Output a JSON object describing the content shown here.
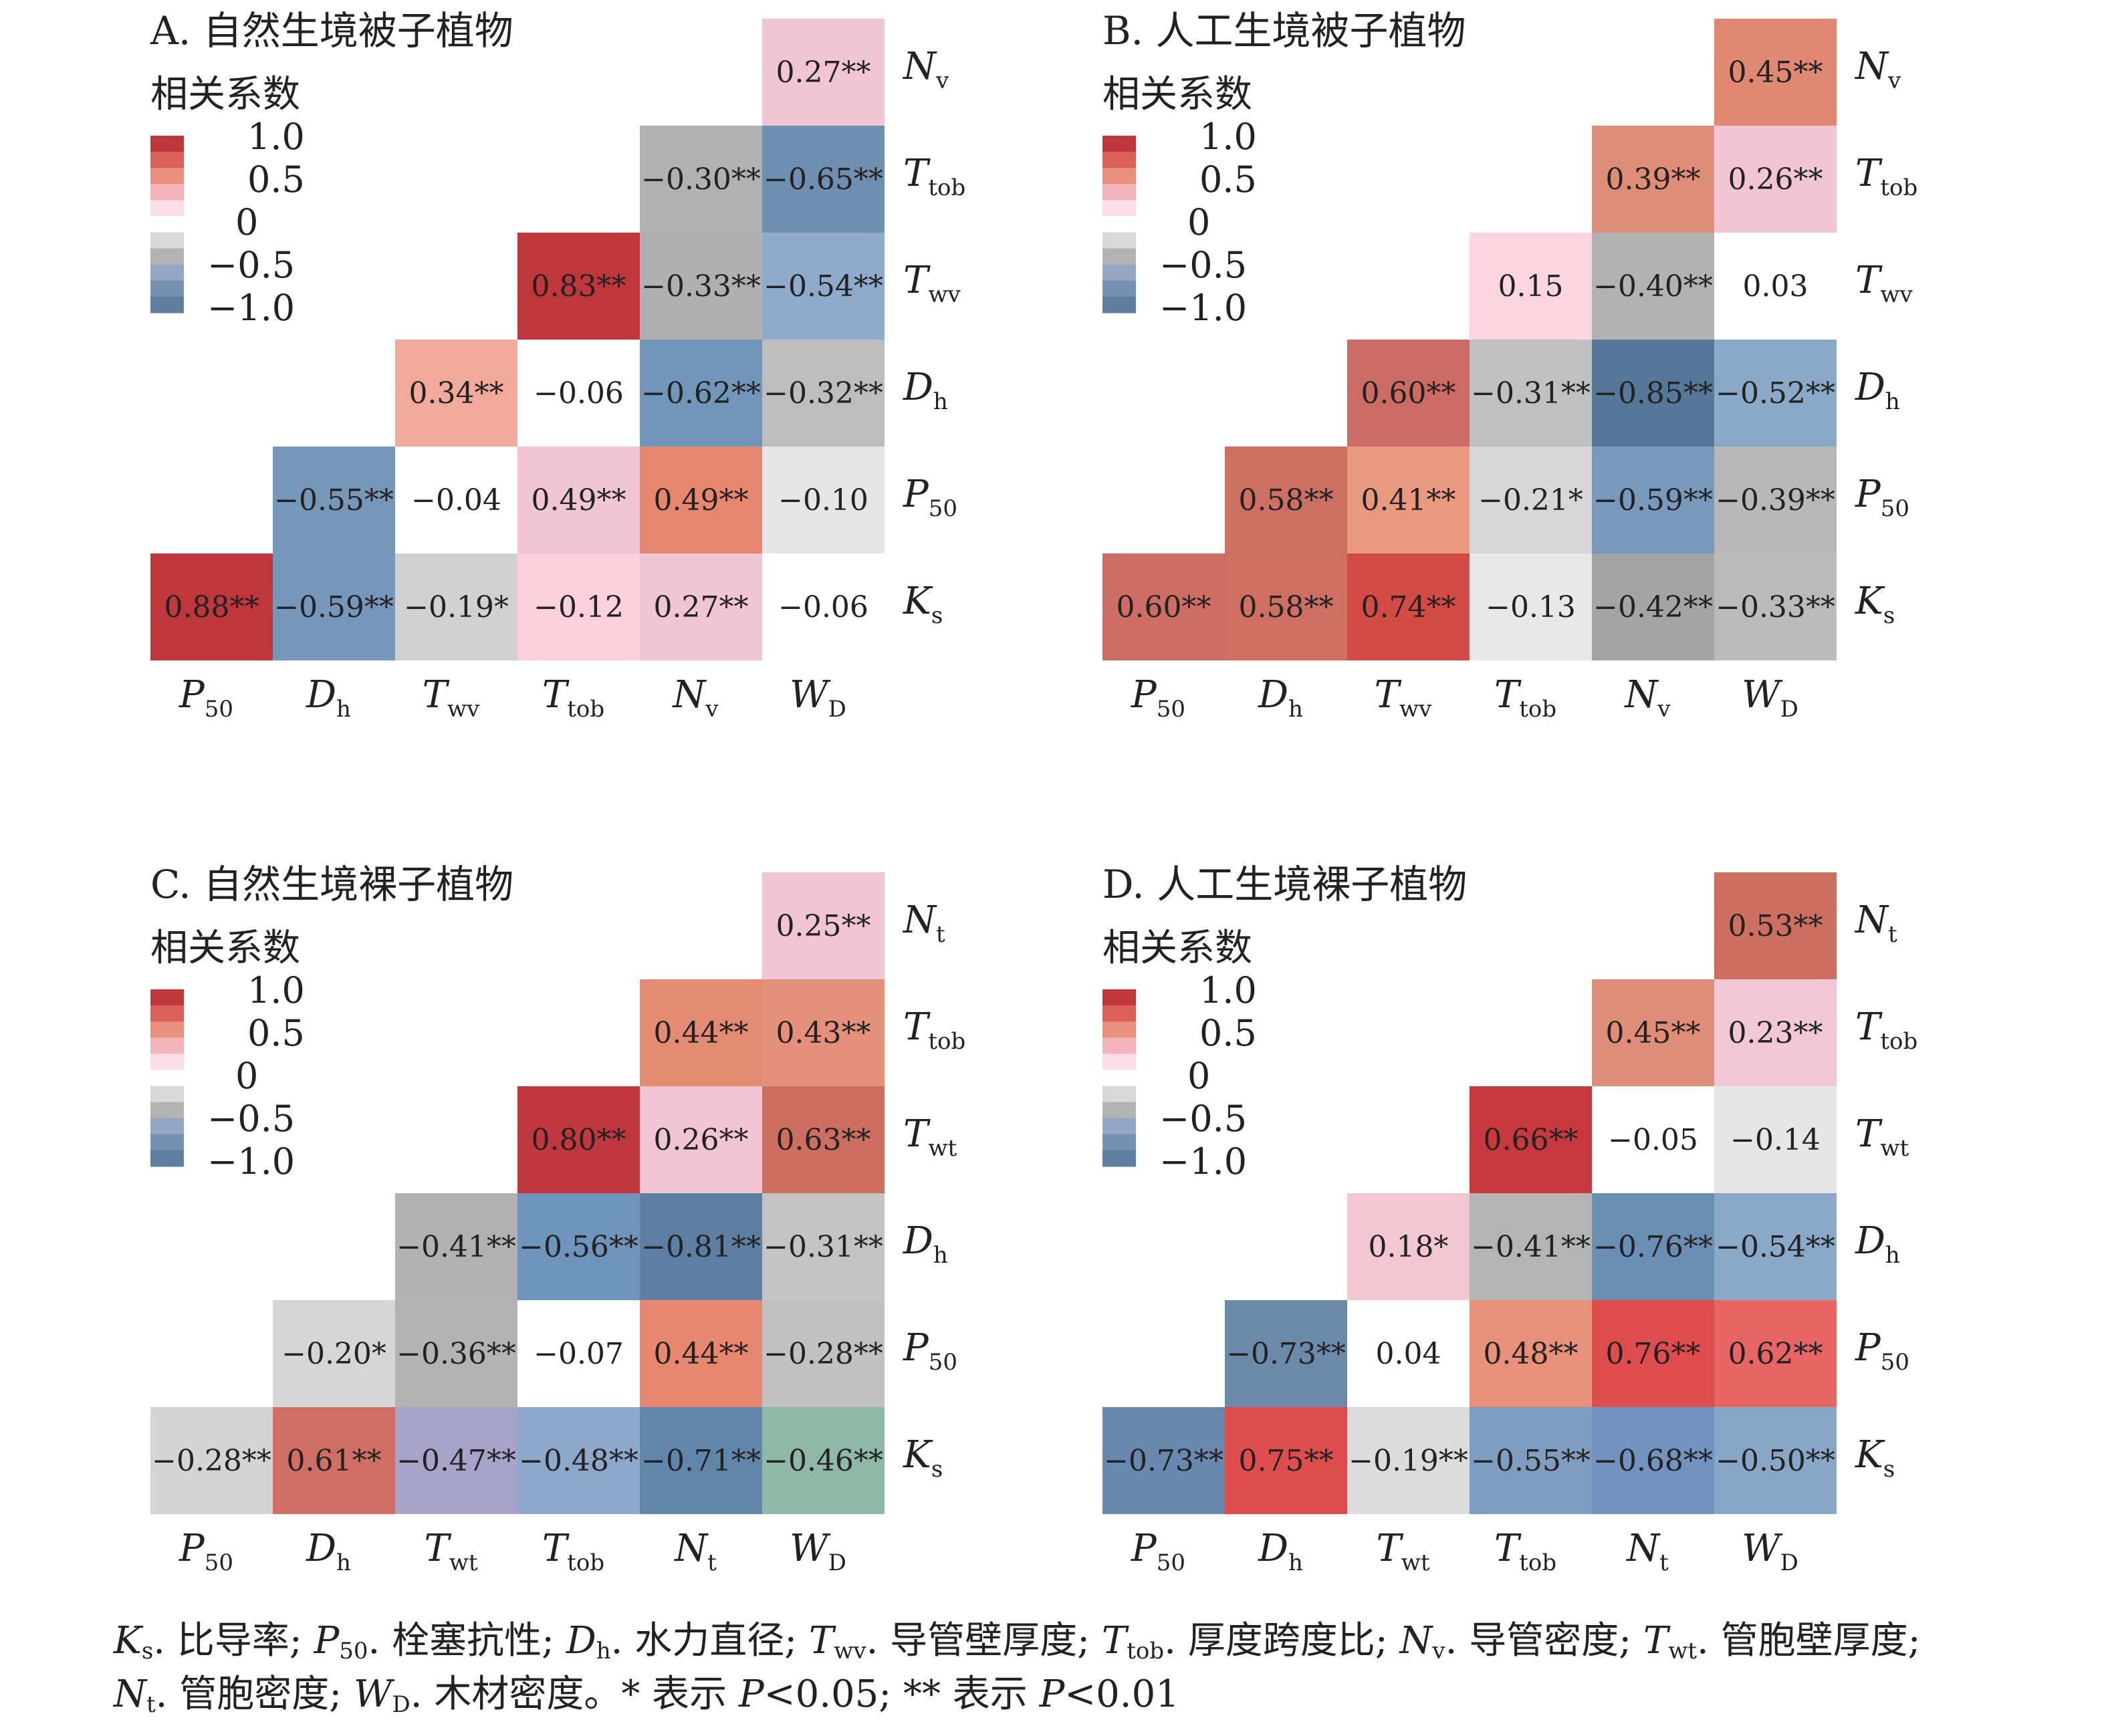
{
  "legend": {
    "title": "相关系数",
    "ticks": [
      "1.0",
      "0.5",
      "0",
      "−0.5",
      "−1.0"
    ]
  },
  "chart_data": [
    {
      "type": "heatmap",
      "title": "A. 自然生境被子植物",
      "x_labels": [
        {
          "main": "P",
          "sub": "50"
        },
        {
          "main": "D",
          "sub": "h"
        },
        {
          "main": "T",
          "sub": "wv"
        },
        {
          "main": "T",
          "sub": "tob"
        },
        {
          "main": "N",
          "sub": "v"
        },
        {
          "main": "W",
          "sub": "D"
        }
      ],
      "y_labels": [
        {
          "main": "N",
          "sub": "v"
        },
        {
          "main": "T",
          "sub": "tob"
        },
        {
          "main": "T",
          "sub": "wv"
        },
        {
          "main": "D",
          "sub": "h"
        },
        {
          "main": "P",
          "sub": "50"
        },
        {
          "main": "K",
          "sub": "s"
        }
      ],
      "rows": [
        [
          null,
          null,
          null,
          null,
          null,
          "0.27**"
        ],
        [
          null,
          null,
          null,
          null,
          "−0.30**",
          "−0.65**"
        ],
        [
          null,
          null,
          null,
          "0.83**",
          "−0.33**",
          "−0.54**"
        ],
        [
          null,
          null,
          "0.34**",
          "−0.06",
          "−0.62**",
          "−0.32**"
        ],
        [
          null,
          "−0.55**",
          "−0.04",
          "0.49**",
          "0.49**",
          "−0.10"
        ],
        [
          "0.88**",
          "−0.59**",
          "−0.19*",
          "−0.12",
          "0.27**",
          "−0.06"
        ]
      ],
      "colors": [
        [
          null,
          null,
          null,
          null,
          null,
          "#f0c5d4"
        ],
        [
          null,
          null,
          null,
          null,
          "#b1b1b1",
          "#6f8fb0"
        ],
        [
          null,
          null,
          null,
          "#c0373b",
          "#b0b0b0",
          "#8fabcb"
        ],
        [
          null,
          null,
          "#f2a89a",
          "#ffffff",
          "#7196ba",
          "#bdbdbd"
        ],
        [
          null,
          "#7797b8",
          "#ffffff",
          "#f0c5d4",
          "#e8876f",
          "#e6e6e6"
        ],
        [
          "#c0373b",
          "#7696bb",
          "#d1d1d1",
          "#fbd0dc",
          "#f0c5d4",
          "#ffffff"
        ]
      ]
    },
    {
      "type": "heatmap",
      "title": "B. 人工生境被子植物",
      "x_labels": [
        {
          "main": "P",
          "sub": "50"
        },
        {
          "main": "D",
          "sub": "h"
        },
        {
          "main": "T",
          "sub": "wv"
        },
        {
          "main": "T",
          "sub": "tob"
        },
        {
          "main": "N",
          "sub": "v"
        },
        {
          "main": "W",
          "sub": "D"
        }
      ],
      "y_labels": [
        {
          "main": "N",
          "sub": "v"
        },
        {
          "main": "T",
          "sub": "tob"
        },
        {
          "main": "T",
          "sub": "wv"
        },
        {
          "main": "D",
          "sub": "h"
        },
        {
          "main": "P",
          "sub": "50"
        },
        {
          "main": "K",
          "sub": "s"
        }
      ],
      "rows": [
        [
          null,
          null,
          null,
          null,
          null,
          "0.45**"
        ],
        [
          null,
          null,
          null,
          null,
          "0.39**",
          "0.26**"
        ],
        [
          null,
          null,
          null,
          "0.15",
          "−0.40**",
          "0.03"
        ],
        [
          null,
          null,
          "0.60**",
          "−0.31**",
          "−0.85**",
          "−0.52**"
        ],
        [
          null,
          "0.58**",
          "0.41**",
          "−0.21*",
          "−0.59**",
          "−0.39**"
        ],
        [
          "0.60**",
          "0.58**",
          "0.74**",
          "−0.13",
          "−0.42**",
          "−0.33**"
        ]
      ],
      "colors": [
        [
          null,
          null,
          null,
          null,
          null,
          "#e08872"
        ],
        [
          null,
          null,
          null,
          null,
          "#e08d78",
          "#f1c5d4"
        ],
        [
          null,
          null,
          null,
          "#fbd5e0",
          "#b2b2b2",
          "#ffffff"
        ],
        [
          null,
          null,
          "#cc6b63",
          "#c0c0c0",
          "#557898",
          "#8aa8c8"
        ],
        [
          null,
          "#cc7063",
          "#eb9881",
          "#d7d7d7",
          "#7898bc",
          "#b8b8b8"
        ],
        [
          "#cd6e64",
          "#cd6f63",
          "#d44b46",
          "#e8e8e8",
          "#a4a4a4",
          "#bbbbbb"
        ]
      ]
    },
    {
      "type": "heatmap",
      "title": "C. 自然生境裸子植物",
      "x_labels": [
        {
          "main": "P",
          "sub": "50"
        },
        {
          "main": "D",
          "sub": "h"
        },
        {
          "main": "T",
          "sub": "wt"
        },
        {
          "main": "T",
          "sub": "tob"
        },
        {
          "main": "N",
          "sub": "t"
        },
        {
          "main": "W",
          "sub": "D"
        }
      ],
      "y_labels": [
        {
          "main": "N",
          "sub": "t"
        },
        {
          "main": "T",
          "sub": "tob"
        },
        {
          "main": "T",
          "sub": "wt"
        },
        {
          "main": "D",
          "sub": "h"
        },
        {
          "main": "P",
          "sub": "50"
        },
        {
          "main": "K",
          "sub": "s"
        }
      ],
      "rows": [
        [
          null,
          null,
          null,
          null,
          null,
          "0.25**"
        ],
        [
          null,
          null,
          null,
          null,
          "0.44**",
          "0.43**"
        ],
        [
          null,
          null,
          null,
          "0.80**",
          "0.26**",
          "0.63**"
        ],
        [
          null,
          null,
          "−0.41**",
          "−0.56**",
          "−0.81**",
          "−0.31**"
        ],
        [
          null,
          "−0.20*",
          "−0.36**",
          "−0.07",
          "0.44**",
          "−0.28**"
        ],
        [
          "−0.28**",
          "0.61**",
          "−0.47**",
          "−0.48**",
          "−0.71**",
          "−0.46**"
        ]
      ],
      "colors": [
        [
          null,
          null,
          null,
          null,
          null,
          "#f1c5d3"
        ],
        [
          null,
          null,
          null,
          null,
          "#e48b74",
          "#e4907a"
        ],
        [
          null,
          null,
          null,
          "#c0373d",
          "#f1c5d4",
          "#cc6e60"
        ],
        [
          null,
          null,
          "#b1b1b1",
          "#6f94bc",
          "#5c7fa3",
          "#c3c3c3"
        ],
        [
          null,
          "#d6d6d6",
          "#b3b3b3",
          "#ffffff",
          "#e8866f",
          "#c1c1c1"
        ],
        [
          "#d4d4d4",
          "#cf6e65",
          "#a8a3c8",
          "#8ea8cc",
          "#6185ab",
          "#8fb8a8"
        ]
      ]
    },
    {
      "type": "heatmap",
      "title": "D. 人工生境裸子植物",
      "x_labels": [
        {
          "main": "P",
          "sub": "50"
        },
        {
          "main": "D",
          "sub": "h"
        },
        {
          "main": "T",
          "sub": "wt"
        },
        {
          "main": "T",
          "sub": "tob"
        },
        {
          "main": "N",
          "sub": "t"
        },
        {
          "main": "W",
          "sub": "D"
        }
      ],
      "y_labels": [
        {
          "main": "N",
          "sub": "t"
        },
        {
          "main": "T",
          "sub": "tob"
        },
        {
          "main": "T",
          "sub": "wt"
        },
        {
          "main": "D",
          "sub": "h"
        },
        {
          "main": "P",
          "sub": "50"
        },
        {
          "main": "K",
          "sub": "s"
        }
      ],
      "rows": [
        [
          null,
          null,
          null,
          null,
          null,
          "0.53**"
        ],
        [
          null,
          null,
          null,
          null,
          "0.45**",
          "0.23**"
        ],
        [
          null,
          null,
          null,
          "0.66**",
          "−0.05",
          "−0.14"
        ],
        [
          null,
          null,
          "0.18*",
          "−0.41**",
          "−0.76**",
          "−0.54**"
        ],
        [
          null,
          "−0.73**",
          "0.04",
          "0.48**",
          "0.76**",
          "0.62**"
        ],
        [
          "−0.73**",
          "0.75**",
          "−0.19**",
          "−0.55**",
          "−0.68**",
          "−0.50**"
        ]
      ],
      "colors": [
        [
          null,
          null,
          null,
          null,
          null,
          "#cc6e60"
        ],
        [
          null,
          null,
          null,
          null,
          "#e08d78",
          "#f1c8d6"
        ],
        [
          null,
          null,
          null,
          "#c7393e",
          "#ffffff",
          "#e6e6e6"
        ],
        [
          null,
          null,
          "#f3c6d4",
          "#b4b4b4",
          "#6a8eb4",
          "#8aa8c8"
        ],
        [
          null,
          "#6b8aa9",
          "#ffffff",
          "#e8917a",
          "#de4c4d",
          "#e86565"
        ],
        [
          "#6888b0",
          "#dd4d4b",
          "#dcdcdc",
          "#7f9dc1",
          "#7193bd",
          "#88a6c6"
        ]
      ]
    }
  ],
  "footnote": {
    "line1": [
      {
        "t": "K",
        "i": true
      },
      {
        "t": "s",
        "sub": true
      },
      {
        "t": ". 比导率; "
      },
      {
        "t": "P",
        "i": true
      },
      {
        "t": "50",
        "sub": true
      },
      {
        "t": ". 栓塞抗性; "
      },
      {
        "t": "D",
        "i": true
      },
      {
        "t": "h",
        "sub": true
      },
      {
        "t": ". 水力直径; "
      },
      {
        "t": "T",
        "i": true
      },
      {
        "t": "wv",
        "sub": true
      },
      {
        "t": ". 导管壁厚度; "
      },
      {
        "t": "T",
        "i": true
      },
      {
        "t": "tob",
        "sub": true
      },
      {
        "t": ". 厚度跨度比; "
      },
      {
        "t": "N",
        "i": true
      },
      {
        "t": "v",
        "sub": true
      },
      {
        "t": ". 导管密度; "
      },
      {
        "t": "T",
        "i": true
      },
      {
        "t": "wt",
        "sub": true
      },
      {
        "t": ". 管胞壁厚度;"
      }
    ],
    "line2": [
      {
        "t": "N",
        "i": true
      },
      {
        "t": "t",
        "sub": true
      },
      {
        "t": ". 管胞密度; "
      },
      {
        "t": "W",
        "i": true
      },
      {
        "t": "D",
        "sub": true
      },
      {
        "t": ". 木材密度。* 表示 "
      },
      {
        "t": "P",
        "i": true
      },
      {
        "t": "<0.05; ** 表示 "
      },
      {
        "t": "P",
        "i": true
      },
      {
        "t": "<0.01"
      }
    ]
  }
}
